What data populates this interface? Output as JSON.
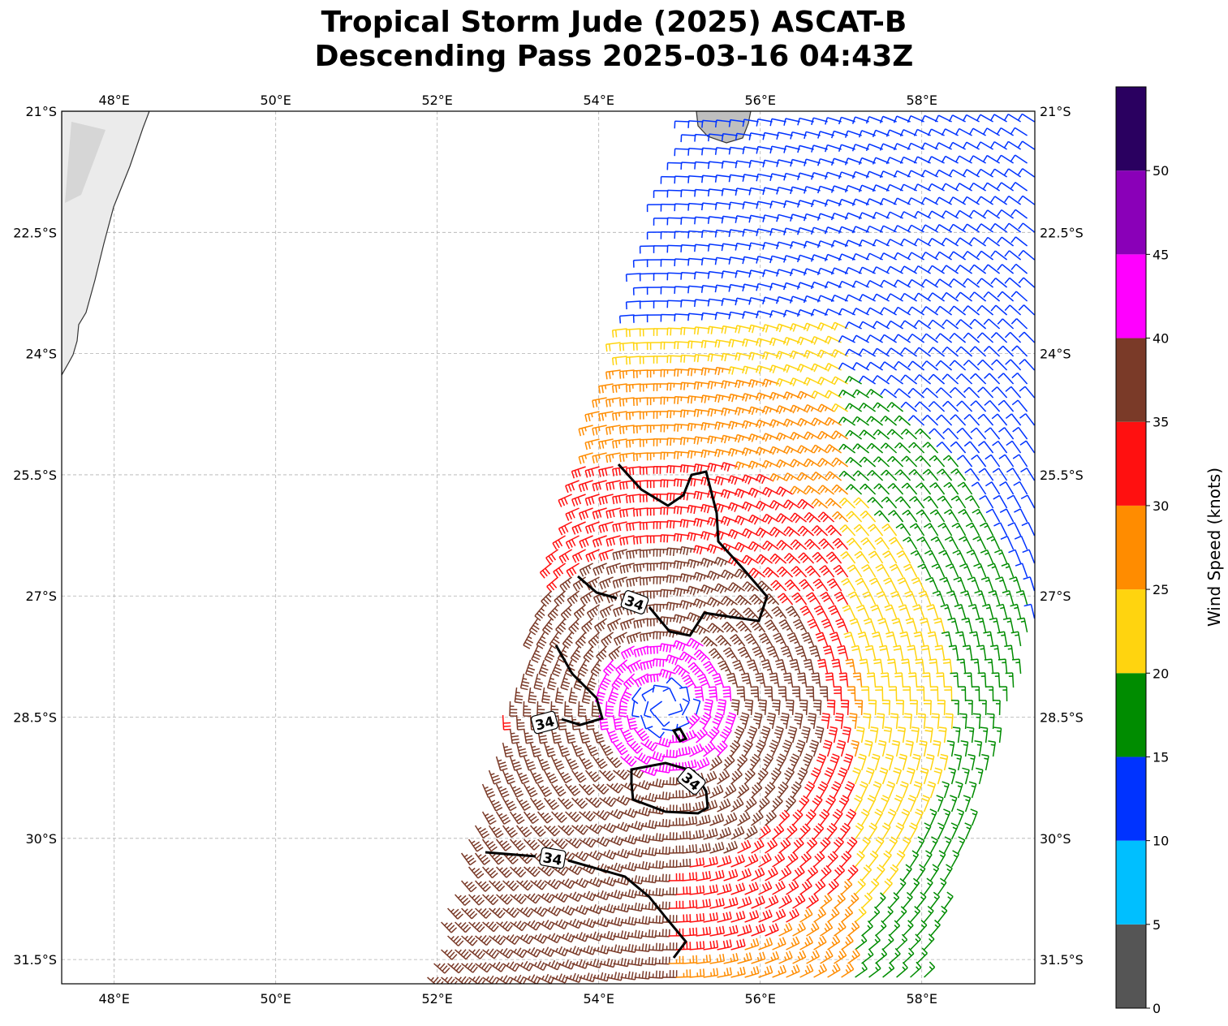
{
  "title": {
    "line1": "Tropical Storm Jude (2025) ASCAT-B",
    "line2": "Descending Pass 2025-03-16 04:43Z"
  },
  "map": {
    "lon_range": [
      47.35,
      59.4
    ],
    "lat_range": [
      -31.8,
      -21.0
    ],
    "lon_ticks": [
      {
        "value": 48,
        "label": "48°E"
      },
      {
        "value": 50,
        "label": "50°E"
      },
      {
        "value": 52,
        "label": "52°E"
      },
      {
        "value": 54,
        "label": "54°E"
      },
      {
        "value": 56,
        "label": "56°E"
      },
      {
        "value": 58,
        "label": "58°E"
      }
    ],
    "lat_ticks": [
      {
        "value": -21,
        "label": "21°S"
      },
      {
        "value": -22.5,
        "label": "22.5°S"
      },
      {
        "value": -24,
        "label": "24°S"
      },
      {
        "value": -25.5,
        "label": "25.5°S"
      },
      {
        "value": -27,
        "label": "27°S"
      },
      {
        "value": -28.5,
        "label": "28.5°S"
      },
      {
        "value": -30,
        "label": "30°S"
      },
      {
        "value": -31.5,
        "label": "31.5°S"
      }
    ],
    "grid": true,
    "land": [
      "Madagascar (west)",
      "Réunion (top)"
    ],
    "contour": {
      "level": 34,
      "label": "34",
      "color": "#000000"
    }
  },
  "colorbar": {
    "label": "Wind Speed (knots)",
    "bins": [
      {
        "min": 0,
        "max": 5,
        "color": "#555555"
      },
      {
        "min": 5,
        "max": 10,
        "color": "#00bfff"
      },
      {
        "min": 10,
        "max": 15,
        "color": "#0033ff"
      },
      {
        "min": 15,
        "max": 20,
        "color": "#008c00"
      },
      {
        "min": 20,
        "max": 25,
        "color": "#ffd40f"
      },
      {
        "min": 25,
        "max": 30,
        "color": "#ff8c00"
      },
      {
        "min": 30,
        "max": 35,
        "color": "#ff1010"
      },
      {
        "min": 35,
        "max": 40,
        "color": "#7a3a28"
      },
      {
        "min": 40,
        "max": 45,
        "color": "#ff00ff"
      },
      {
        "min": 45,
        "max": 50,
        "color": "#8a00b8"
      },
      {
        "min": 50,
        "max": 55,
        "color": "#2a0060"
      }
    ],
    "tick_labels": [
      "0",
      "5",
      "10",
      "15",
      "20",
      "25",
      "30",
      "35",
      "40",
      "45",
      "50"
    ]
  }
}
